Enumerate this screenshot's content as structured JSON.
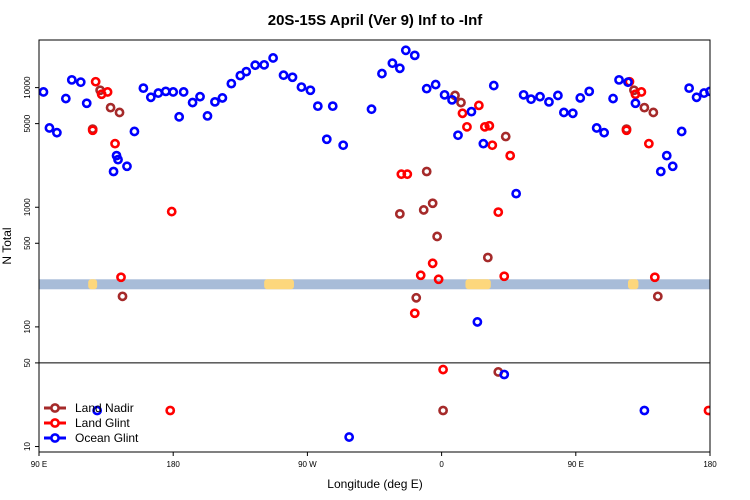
{
  "chart_data": {
    "type": "scatter",
    "title": "20S-15S April (Ver 9)   Inf to -Inf",
    "xlabel": "Longitude (deg E)",
    "ylabel": "N Total",
    "y_scale": "log",
    "ylim": [
      9,
      25000
    ],
    "x_ticks": [
      {
        "value": 90,
        "label": "90 E"
      },
      {
        "value": 180,
        "label": "180"
      },
      {
        "value": 270,
        "label": "90 W"
      },
      {
        "value": 360,
        "label": "0"
      },
      {
        "value": 450,
        "label": "90 E"
      },
      {
        "value": 540,
        "label": "180"
      }
    ],
    "y_ticks": [
      {
        "value": 10,
        "label": "10"
      },
      {
        "value": 50,
        "label": "50"
      },
      {
        "value": 100,
        "label": "100"
      },
      {
        "value": 500,
        "label": "500"
      },
      {
        "value": 1000,
        "label": "1000"
      },
      {
        "value": 5000,
        "label": "5000"
      },
      {
        "value": 10000,
        "label": "10000"
      }
    ],
    "reference_line": {
      "y": 50,
      "color": "#000000"
    },
    "surface_band": {
      "y": 227,
      "ocean_color": "#a8bcd8",
      "land_color": "#fdd77c",
      "land_ranges": [
        [
          123,
          129
        ],
        [
          241,
          261
        ],
        [
          376,
          393
        ],
        [
          485,
          492
        ]
      ]
    },
    "legend_position": "bottom-left",
    "series": [
      {
        "name": "Land Nadir",
        "color": "#a52a2a",
        "points": [
          [
            126,
            4500
          ],
          [
            131,
            9500
          ],
          [
            138,
            6800
          ],
          [
            144,
            6200
          ],
          [
            146,
            180
          ],
          [
            332,
            880
          ],
          [
            343,
            175
          ],
          [
            348,
            950
          ],
          [
            350,
            1990
          ],
          [
            354,
            1080
          ],
          [
            357,
            570
          ],
          [
            361,
            20
          ],
          [
            369,
            8600
          ],
          [
            373,
            7500
          ],
          [
            391,
            380
          ],
          [
            398,
            42
          ],
          [
            403,
            3900
          ],
          [
            484,
            4500
          ],
          [
            489,
            9500
          ],
          [
            496,
            6800
          ],
          [
            502,
            6200
          ],
          [
            505,
            180
          ]
        ]
      },
      {
        "name": "Land Glint",
        "color": "#ff0000",
        "points": [
          [
            126,
            4400
          ],
          [
            128,
            11200
          ],
          [
            132,
            8800
          ],
          [
            136,
            9200
          ],
          [
            141,
            3400
          ],
          [
            145,
            260
          ],
          [
            178,
            20
          ],
          [
            179,
            920
          ],
          [
            333,
            1890
          ],
          [
            337,
            1890
          ],
          [
            342,
            130
          ],
          [
            346,
            270
          ],
          [
            354,
            340
          ],
          [
            358,
            250
          ],
          [
            361,
            44
          ],
          [
            374,
            6100
          ],
          [
            377,
            4700
          ],
          [
            385,
            7100
          ],
          [
            389,
            4700
          ],
          [
            392,
            4800
          ],
          [
            394,
            3300
          ],
          [
            398,
            910
          ],
          [
            402,
            265
          ],
          [
            406,
            2700
          ],
          [
            484,
            4400
          ],
          [
            486,
            11200
          ],
          [
            490,
            8800
          ],
          [
            494,
            9200
          ],
          [
            499,
            3400
          ],
          [
            503,
            260
          ],
          [
            539,
            20
          ]
        ]
      },
      {
        "name": "Ocean Glint",
        "color": "#0000ff",
        "points": [
          [
            93,
            9200
          ],
          [
            97,
            4600
          ],
          [
            102,
            4200
          ],
          [
            108,
            8100
          ],
          [
            112,
            11600
          ],
          [
            118,
            11100
          ],
          [
            122,
            7400
          ],
          [
            129,
            20
          ],
          [
            140,
            1990
          ],
          [
            143,
            2500
          ],
          [
            142,
            2700
          ],
          [
            149,
            2200
          ],
          [
            154,
            4300
          ],
          [
            160,
            9900
          ],
          [
            165,
            8300
          ],
          [
            170,
            9000
          ],
          [
            175,
            9300
          ],
          [
            180,
            9200
          ],
          [
            184,
            5700
          ],
          [
            187,
            9200
          ],
          [
            193,
            7500
          ],
          [
            198,
            8400
          ],
          [
            203,
            5800
          ],
          [
            208,
            7600
          ],
          [
            213,
            8200
          ],
          [
            219,
            10800
          ],
          [
            225,
            12600
          ],
          [
            229,
            13600
          ],
          [
            235,
            15400
          ],
          [
            241,
            15500
          ],
          [
            247,
            17700
          ],
          [
            254,
            12700
          ],
          [
            260,
            12200
          ],
          [
            266,
            10100
          ],
          [
            272,
            9500
          ],
          [
            277,
            7000
          ],
          [
            283,
            3700
          ],
          [
            287,
            7000
          ],
          [
            294,
            3300
          ],
          [
            298,
            12
          ],
          [
            313,
            6600
          ],
          [
            320,
            13100
          ],
          [
            327,
            16000
          ],
          [
            332,
            14500
          ],
          [
            336,
            20500
          ],
          [
            342,
            18600
          ],
          [
            350,
            9800
          ],
          [
            356,
            10600
          ],
          [
            362,
            8700
          ],
          [
            367,
            7900
          ],
          [
            371,
            4000
          ],
          [
            380,
            6300
          ],
          [
            384,
            110
          ],
          [
            388,
            3400
          ],
          [
            395,
            10400
          ],
          [
            402,
            40
          ],
          [
            410,
            1300
          ],
          [
            415,
            8700
          ],
          [
            420,
            8000
          ],
          [
            426,
            8400
          ],
          [
            432,
            7600
          ],
          [
            438,
            8600
          ],
          [
            442,
            6200
          ],
          [
            448,
            6100
          ],
          [
            453,
            8200
          ],
          [
            459,
            9300
          ],
          [
            464,
            4600
          ],
          [
            469,
            4200
          ],
          [
            475,
            8100
          ],
          [
            479,
            11600
          ],
          [
            485,
            11100
          ],
          [
            490,
            7400
          ],
          [
            496,
            20
          ],
          [
            507,
            1990
          ],
          [
            511,
            2700
          ],
          [
            515,
            2200
          ],
          [
            521,
            4300
          ],
          [
            526,
            9900
          ],
          [
            531,
            8300
          ],
          [
            536,
            9000
          ],
          [
            540,
            9300
          ]
        ]
      }
    ]
  }
}
